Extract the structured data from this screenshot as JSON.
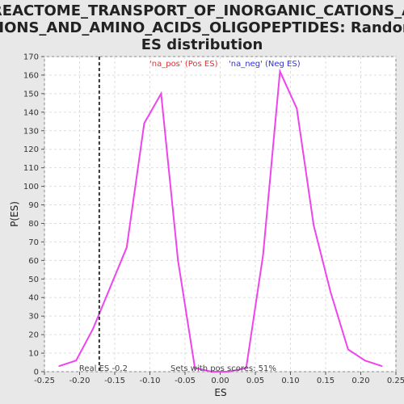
{
  "chart_data": {
    "type": "line",
    "title_lines": [
      "REACTOME_TRANSPORT_OF_INORGANIC_CATIONS_A",
      "NIONS_AND_AMINO_ACIDS_OLIGOPEPTIDES: Random",
      "ES distribution"
    ],
    "xlabel": "ES",
    "ylabel": "P(ES)",
    "xlim": [
      -0.25,
      0.25
    ],
    "ylim": [
      0,
      170
    ],
    "xticks": [
      -0.25,
      -0.2,
      -0.15,
      -0.1,
      -0.05,
      0.0,
      0.05,
      0.1,
      0.15,
      0.2,
      0.25
    ],
    "xtick_labels": [
      "-0.25",
      "-0.20",
      "-0.15",
      "-0.10",
      "-0.05",
      "0.00",
      "0.05",
      "0.10",
      "0.15",
      "0.20",
      "0.25"
    ],
    "yticks": [
      0,
      10,
      20,
      30,
      40,
      50,
      60,
      70,
      80,
      90,
      100,
      110,
      120,
      130,
      140,
      150,
      160,
      170
    ],
    "grid": true,
    "series": [
      {
        "color": "#ee44ee",
        "x": [
          -0.229,
          -0.205,
          -0.181,
          -0.157,
          -0.133,
          -0.108,
          -0.084,
          -0.06,
          -0.036,
          -0.012,
          0.012,
          0.037,
          0.061,
          0.085,
          0.109,
          0.133,
          0.157,
          0.182,
          0.206,
          0.23
        ],
        "y": [
          3,
          6,
          23,
          45,
          67,
          134,
          150,
          60,
          2,
          0,
          0,
          2,
          63,
          162,
          142,
          79,
          43,
          12,
          6,
          3
        ]
      }
    ],
    "real_es": -0.172,
    "annotations": {
      "real_es_label": "Real ES -0.2",
      "pos_legend": "'na_pos' (Pos ES)",
      "neg_legend": "'na_neg' (Neg ES)",
      "pos_scores": "Sets with pos scores: 51%"
    },
    "colors": {
      "line": "#ee44ee",
      "pos_legend": "#e03030",
      "neg_legend": "#3030d0",
      "real_es": "#333333"
    }
  }
}
